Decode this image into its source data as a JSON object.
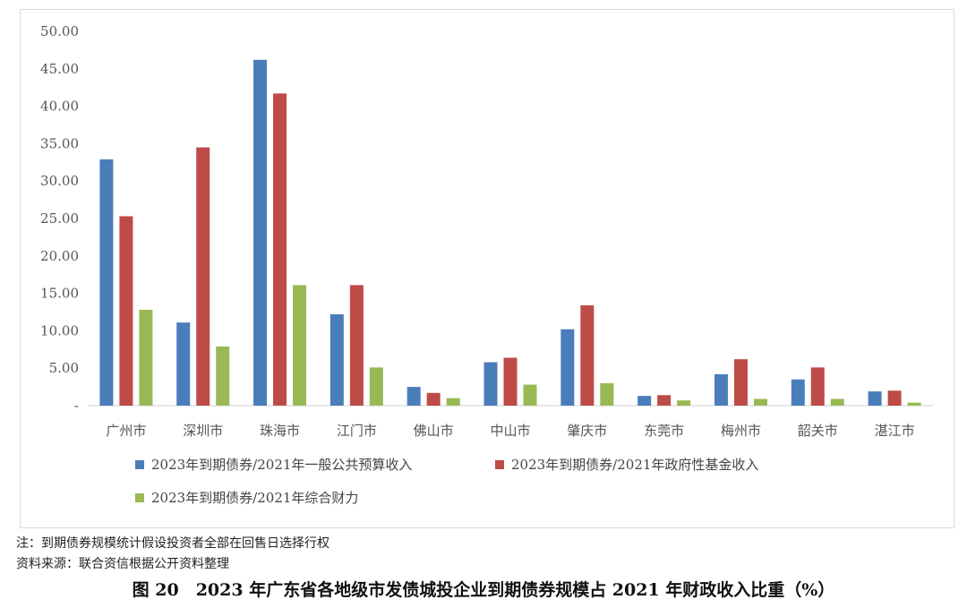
{
  "chart_data": {
    "type": "bar",
    "categories": [
      "广州市",
      "深圳市",
      "珠海市",
      "江门市",
      "佛山市",
      "中山市",
      "肇庆市",
      "东莞市",
      "梅州市",
      "韶关市",
      "湛江市"
    ],
    "series": [
      {
        "name": "2023年到期债券/2021年一般公共预算收入",
        "color": "#4a7ebb",
        "values": [
          32.9,
          11.1,
          46.2,
          12.2,
          2.5,
          5.8,
          10.2,
          1.3,
          4.2,
          3.5,
          1.9
        ]
      },
      {
        "name": "2023年到期债券/2021年政府性基金收入",
        "color": "#be4b48",
        "values": [
          25.3,
          34.5,
          41.7,
          16.1,
          1.7,
          6.4,
          13.4,
          1.4,
          6.2,
          5.1,
          2.0
        ]
      },
      {
        "name": "2023年到期债券/2021年综合财力",
        "color": "#98b954",
        "values": [
          12.8,
          7.9,
          16.1,
          5.1,
          1.0,
          2.8,
          3.0,
          0.7,
          0.9,
          0.9,
          0.4
        ]
      }
    ],
    "ylim": [
      0,
      50
    ],
    "yticks": [
      "-",
      "5.00",
      "10.00",
      "15.00",
      "20.00",
      "25.00",
      "30.00",
      "35.00",
      "40.00",
      "45.00",
      "50.00"
    ],
    "grid": false,
    "legend_position": "bottom"
  },
  "note": "注：到期债券规模统计假设投资者全部在回售日选择行权",
  "source": "资料来源：联合资信根据公开资料整理",
  "caption": "图 20　2023 年广东省各地级市发债城投企业到期债券规模占 2021 年财政收入比重（%）"
}
